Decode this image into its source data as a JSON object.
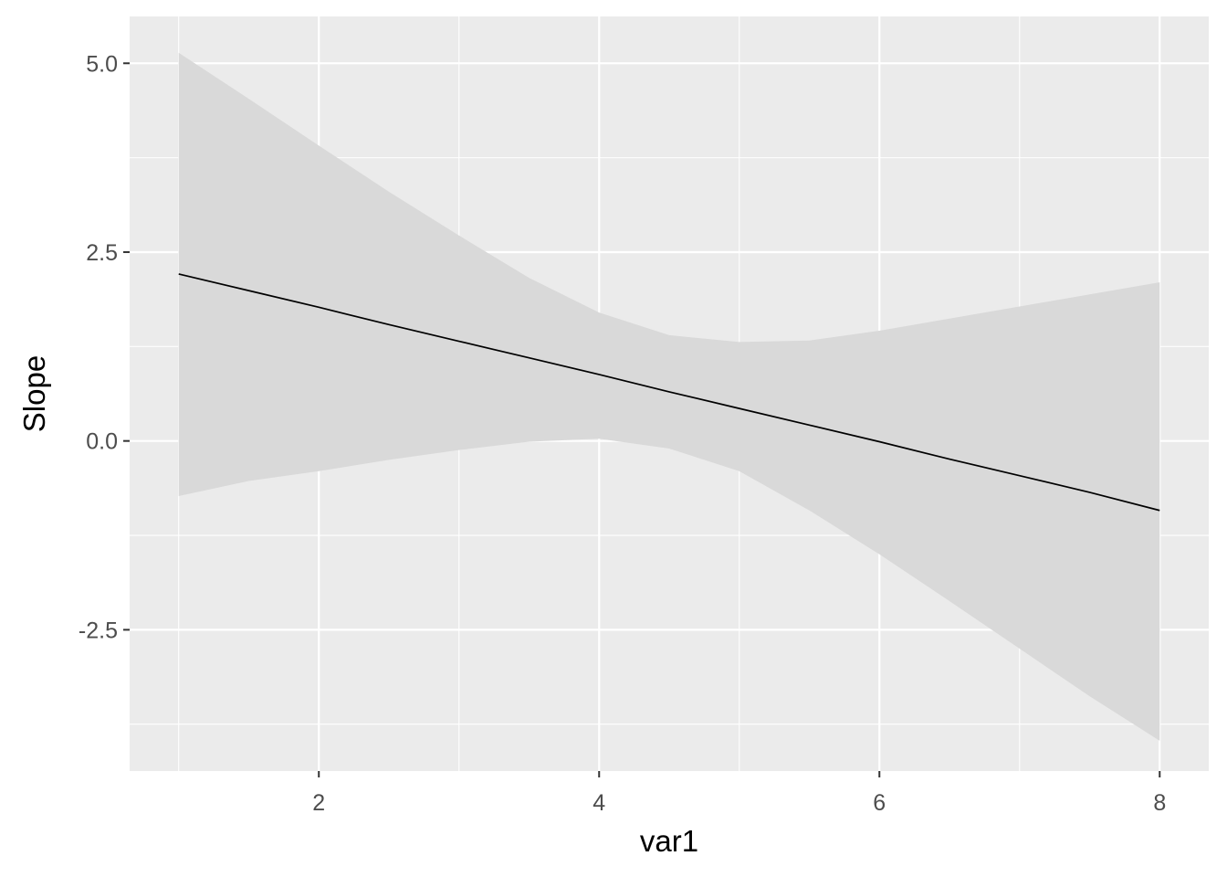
{
  "chart_data": {
    "type": "line",
    "title": "",
    "xlabel": "var1",
    "ylabel": "Slope",
    "xlim": [
      0.65,
      8.35
    ],
    "ylim": [
      -4.37,
      5.62
    ],
    "x_ticks": [
      2,
      4,
      6,
      8
    ],
    "x_tick_labels": [
      "2",
      "4",
      "6",
      "8"
    ],
    "y_ticks": [
      5.0,
      2.5,
      0.0,
      -2.5
    ],
    "y_tick_labels": [
      "5.0",
      "2.5",
      "0.0",
      "-2.5"
    ],
    "grid": true,
    "legend": "none",
    "colors": {
      "panel_background": "#ebebeb",
      "grid_line": "#ffffff",
      "ribbon": "#d9d9d9",
      "line": "#000000"
    },
    "series": [
      {
        "x": [
          1.0,
          1.5,
          2.0,
          2.5,
          3.0,
          3.5,
          4.0,
          4.5,
          5.0,
          5.5,
          6.0,
          6.5,
          7.0,
          7.5,
          8.0
        ],
        "values": [
          2.21,
          1.99,
          1.77,
          1.54,
          1.32,
          1.1,
          0.88,
          0.65,
          0.43,
          0.21,
          -0.01,
          -0.24,
          -0.46,
          -0.68,
          -0.92
        ],
        "lower": [
          -0.73,
          -0.53,
          -0.4,
          -0.25,
          -0.12,
          -0.01,
          0.03,
          -0.1,
          -0.4,
          -0.92,
          -1.5,
          -2.12,
          -2.75,
          -3.38,
          -3.97
        ],
        "upper": [
          5.14,
          4.53,
          3.91,
          3.3,
          2.72,
          2.16,
          1.7,
          1.4,
          1.31,
          1.33,
          1.46,
          1.62,
          1.78,
          1.94,
          2.1
        ]
      }
    ]
  }
}
